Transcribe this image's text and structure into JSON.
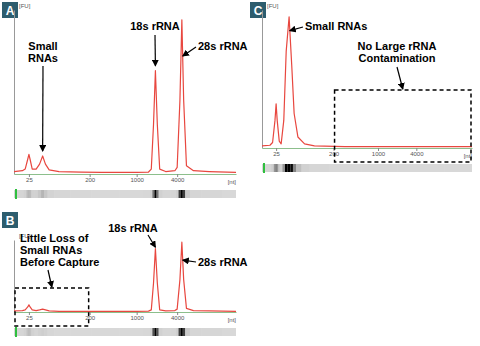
{
  "chart_data": [
    {
      "type": "line",
      "title": "A",
      "xlabel": "[nt]",
      "ylabel": "[FU]",
      "log": "x",
      "tick_labels": "x",
      "xlim": [
        15,
        30000
      ],
      "ylim": [
        0,
        100
      ],
      "xticks": [
        25,
        200,
        1000,
        4000
      ],
      "x": [
        15,
        20,
        22,
        24,
        25,
        26,
        28,
        32,
        36,
        40,
        44,
        50,
        70,
        150,
        300,
        1000,
        1500,
        1650,
        1780,
        1900,
        2030,
        2200,
        2700,
        3700,
        4000,
        4400,
        4700,
        5000,
        5500,
        7000,
        12000,
        30000
      ],
      "series": [
        {
          "color": "#e8473f",
          "values": [
            1.5,
            2,
            3,
            9,
            12,
            9,
            3,
            3,
            6,
            11,
            6,
            2.5,
            1.5,
            1.2,
            1,
            1,
            1.2,
            3,
            30,
            63,
            30,
            3,
            1.5,
            2,
            4,
            45,
            94,
            45,
            5,
            2,
            1.5,
            1
          ]
        }
      ],
      "annotations": [
        {
          "text": "Small RNAs",
          "x": 40,
          "y": 14
        },
        {
          "text": "18s rRNA",
          "x": 1900,
          "y": 66
        },
        {
          "text": "28s rRNA",
          "x": 4850,
          "y": 72
        }
      ]
    },
    {
      "type": "line",
      "title": "B",
      "xlabel": "[nt]",
      "ylabel": "[FU]",
      "log": "x",
      "tick_labels": "x",
      "xlim": [
        15,
        30000
      ],
      "ylim": [
        0,
        100
      ],
      "xticks": [
        25,
        200,
        1000,
        4000
      ],
      "x": [
        15,
        20,
        22,
        24,
        25,
        26,
        28,
        32,
        36,
        40,
        44,
        50,
        70,
        150,
        300,
        1000,
        1500,
        1650,
        1780,
        1900,
        2030,
        2200,
        2700,
        3700,
        4000,
        4400,
        4700,
        5000,
        5500,
        7000,
        12000,
        30000
      ],
      "series": [
        {
          "color": "#e8473f",
          "values": [
            1.5,
            2,
            3,
            7,
            10,
            7,
            3,
            2,
            3,
            4,
            3,
            1.5,
            1,
            1,
            1,
            1,
            1.2,
            3,
            40,
            88,
            40,
            3,
            1.5,
            2,
            4,
            45,
            97,
            45,
            5,
            2,
            1.5,
            1
          ]
        }
      ],
      "annotations": [
        {
          "text": "18s rRNA",
          "x": 1900,
          "y": 90
        },
        {
          "text": "28s rRNA",
          "x": 4850,
          "y": 72
        },
        {
          "text": "Little Loss of Small RNAs Before Capture",
          "region": [
            15,
            200
          ]
        }
      ]
    },
    {
      "type": "line",
      "title": "C",
      "xlabel": "[nt]",
      "ylabel": "[FU]",
      "log": "x",
      "tick_labels": "x",
      "xlim": [
        15,
        30000
      ],
      "ylim": [
        0,
        100
      ],
      "xticks": [
        25,
        200,
        1000,
        4000
      ],
      "x": [
        15,
        20,
        22,
        24,
        25,
        26,
        28,
        30,
        33,
        36,
        40,
        44,
        48,
        55,
        70,
        100,
        300,
        1000,
        4000,
        30000
      ],
      "series": [
        {
          "color": "#e8473f",
          "values": [
            1.5,
            2,
            4,
            20,
            32,
            20,
            5,
            3,
            20,
            70,
            95,
            60,
            25,
            8,
            3,
            1.5,
            1,
            1,
            1,
            1
          ]
        }
      ],
      "annotations": [
        {
          "text": "Small RNAs",
          "x": 41,
          "y": 85
        },
        {
          "text": "No Large rRNA Contamination",
          "region": [
            200,
            30000
          ]
        }
      ]
    }
  ]
}
